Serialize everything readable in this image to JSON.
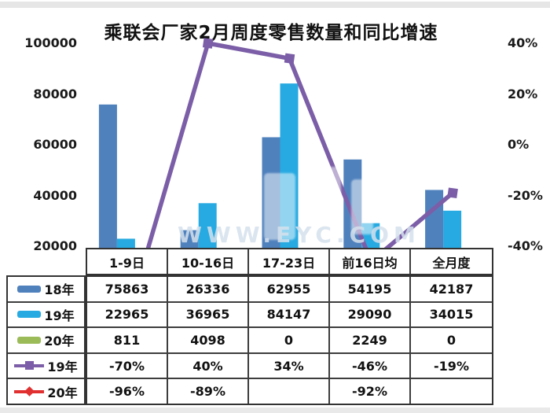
{
  "page": {
    "strip_color": "#e6e6e6",
    "background": "#ffffff"
  },
  "chart_data": {
    "type": "combo-bar-line",
    "title": "乘联会厂家2月周度零售数量和同比增速",
    "categories": [
      "1-9日",
      "10-16日",
      "17-23日",
      "前16日均",
      "全月度"
    ],
    "bar_series": [
      {
        "name": "18年",
        "color": "#4f81bd",
        "values": [
          75863,
          26336,
          62955,
          54195,
          42187
        ]
      },
      {
        "name": "19年",
        "color": "#27aae1",
        "values": [
          22965,
          36965,
          84147,
          29090,
          34015
        ]
      },
      {
        "name": "20年",
        "color": "#9bbb59",
        "values": [
          811,
          4098,
          0,
          2249,
          0
        ]
      }
    ],
    "line_series": [
      {
        "name": "19年",
        "color": "#7b5ea7",
        "marker": "square",
        "values_pct": [
          -70,
          40,
          34,
          -46,
          -19
        ]
      },
      {
        "name": "20年",
        "color": "#e03030",
        "marker": "diamond",
        "values_pct": [
          -96,
          -89,
          null,
          -92,
          null
        ]
      }
    ],
    "axis_left": {
      "labels": [
        "100000",
        "80000",
        "60000",
        "40000",
        "20000"
      ],
      "values": [
        100000,
        80000,
        60000,
        40000,
        20000
      ],
      "visible_min": 20000,
      "visible_max": 100000
    },
    "axis_right": {
      "labels": [
        "40%",
        "20%",
        "0%",
        "-20%",
        "-40%"
      ],
      "values": [
        40,
        20,
        0,
        -20,
        -40
      ],
      "visible_min": -40,
      "visible_max": 40
    },
    "grid": "off",
    "legend_position": "table-left-column"
  },
  "table": {
    "header": [
      "1-9日",
      "10-16日",
      "17-23日",
      "前16日均",
      "全月度"
    ],
    "rows": [
      {
        "legend": "bar",
        "color": "#4f81bd",
        "label": "18年",
        "cells": [
          "75863",
          "26336",
          "62955",
          "54195",
          "42187"
        ]
      },
      {
        "legend": "bar",
        "color": "#27aae1",
        "label": "19年",
        "cells": [
          "22965",
          "36965",
          "84147",
          "29090",
          "34015"
        ]
      },
      {
        "legend": "bar",
        "color": "#9bbb59",
        "label": "20年",
        "cells": [
          "811",
          "4098",
          "0",
          "2249",
          "0"
        ]
      },
      {
        "legend": "line-square",
        "color": "#7b5ea7",
        "label": "19年",
        "cells": [
          "-70%",
          "40%",
          "34%",
          "-46%",
          "-19%"
        ]
      },
      {
        "legend": "line-diamond",
        "color": "#e03030",
        "label": "20年",
        "cells": [
          "-96%",
          "-89%",
          "",
          "-92%",
          ""
        ]
      }
    ]
  },
  "watermark": {
    "text": "WWW.EYC.COM"
  }
}
